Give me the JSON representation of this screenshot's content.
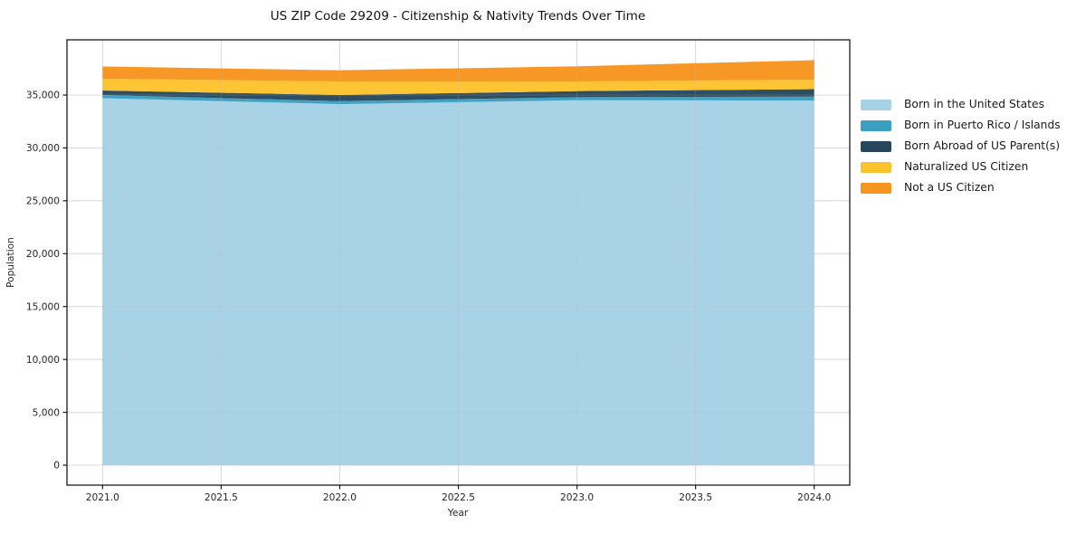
{
  "figure": {
    "background": "#ffffff",
    "x_axis": {
      "label": "Year",
      "tick_labels": [
        "2021.0",
        "2021.5",
        "2022.0",
        "2022.5",
        "2023.0",
        "2023.5",
        "2024.0"
      ],
      "tick_values": [
        2021.0,
        2021.5,
        2022.0,
        2022.5,
        2023.0,
        2023.5,
        2024.0
      ]
    },
    "y_axis": {
      "label": "Population",
      "tick_labels": [
        "0",
        "5,000",
        "10,000",
        "15,000",
        "20,000",
        "25,000",
        "30,000",
        "35,000"
      ],
      "tick_values": [
        0,
        5000,
        10000,
        15000,
        20000,
        25000,
        30000,
        35000
      ]
    },
    "grid_color": "#e0e0e0",
    "spine_color": "#1a1a1a"
  },
  "chart_data": {
    "type": "area",
    "stacked": true,
    "title": "US ZIP Code 29209 - Citizenship & Nativity Trends Over Time",
    "xlabel": "Year",
    "ylabel": "Population",
    "x": [
      2021,
      2022,
      2023,
      2024
    ],
    "series": [
      {
        "name": "Born in the United States",
        "color": "#a5d2e6",
        "values": [
          34700,
          34140,
          34510,
          34480
        ]
      },
      {
        "name": "Born in Puerto Rico / Islands",
        "color": "#3b9fc1",
        "values": [
          300,
          285,
          290,
          370
        ]
      },
      {
        "name": "Born Abroad of US Parent(s)",
        "color": "#27485c",
        "values": [
          430,
          575,
          570,
          705
        ]
      },
      {
        "name": "Naturalized US Citizen",
        "color": "#fdc32d",
        "values": [
          1110,
          1285,
          915,
          900
        ]
      },
      {
        "name": "Not a US Citizen",
        "color": "#f7951f",
        "values": [
          1160,
          1055,
          1430,
          1845
        ]
      }
    ],
    "totals": [
      37700,
      37340,
      37715,
      38300
    ],
    "xlim": [
      2020.85,
      2024.15
    ],
    "ylim": [
      0,
      40200
    ],
    "grid": true,
    "legend_position": "right"
  }
}
